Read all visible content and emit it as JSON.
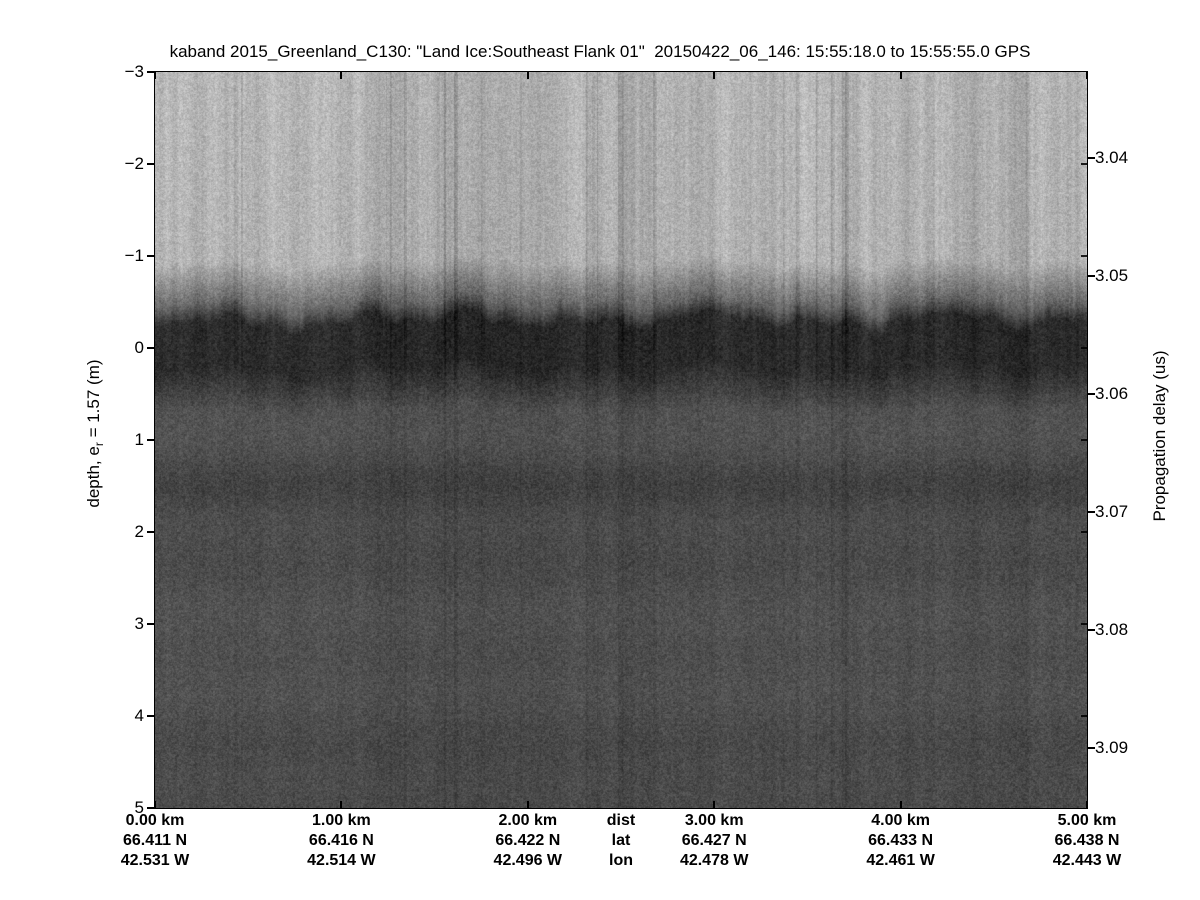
{
  "title": "kaband 2015_Greenland_C130: \"Land Ice:Southeast Flank 01\"  20150422_06_146: 15:55:18.0 to 15:55:55.0 GPS",
  "chart_data": {
    "type": "heatmap",
    "subtype": "radar-echogram",
    "title": "kaband 2015_Greenland_C130: \"Land Ice:Southeast Flank 01\"  20150422_06_146: 15:55:18.0 to 15:55:55.0 GPS",
    "grid": "off",
    "colormap": "grayscale",
    "left_axis": {
      "label": "depth, e_r = 1.57 (m)",
      "label_parts": {
        "prefix": "depth, e",
        "sub": "r",
        "suffix": " = 1.57 (m)"
      },
      "unit": "m",
      "ticks": [
        -3,
        -2,
        -1,
        0,
        1,
        2,
        3,
        4,
        5
      ],
      "range": [
        -3,
        5
      ]
    },
    "right_axis": {
      "label": "Propagation delay (us)",
      "unit": "us",
      "ticks": [
        3.04,
        3.05,
        3.06,
        3.07,
        3.08,
        3.09
      ]
    },
    "x_axis": {
      "row_headers": [
        "dist",
        "lat",
        "lon"
      ],
      "row_header_position_km": 2.5,
      "range_km": [
        0,
        5
      ],
      "columns": [
        {
          "km": 0,
          "dist": "0.00 km",
          "lat": "66.411 N",
          "lon": "42.531 W"
        },
        {
          "km": 1,
          "dist": "1.00 km",
          "lat": "66.416 N",
          "lon": "42.514 W"
        },
        {
          "km": 2,
          "dist": "2.00 km",
          "lat": "66.422 N",
          "lon": "42.496 W"
        },
        {
          "km": 3,
          "dist": "3.00 km",
          "lat": "66.427 N",
          "lon": "42.478 W"
        },
        {
          "km": 4,
          "dist": "4.00 km",
          "lat": "66.433 N",
          "lon": "42.461 W"
        },
        {
          "km": 5,
          "dist": "5.00 km",
          "lat": "66.438 N",
          "lon": "42.443 W"
        }
      ]
    },
    "image_regions": [
      {
        "name": "above-surface noise (air)",
        "depth_range_m": [
          -3,
          -0.7
        ],
        "gray_mean": 178,
        "texture": "light speckle with faint dark vertical streaks"
      },
      {
        "name": "transition to surface",
        "depth_range_m": [
          -0.7,
          -0.45
        ],
        "gray_mean": 110,
        "texture": "gradual darkening, ragged edge"
      },
      {
        "name": "surface return band",
        "depth_range_m": [
          -0.45,
          0.25
        ],
        "gray_mean": 42,
        "texture": "dark ragged horizontal band centered at depth 0"
      },
      {
        "name": "subsurface ice",
        "depth_range_m": [
          0.25,
          5
        ],
        "gray_mean": 78,
        "texture": "uniform mid-dark speckle with faint horizontal banding"
      },
      {
        "name": "internal layer dip",
        "depth_m": 1.5,
        "gray_mean": 68,
        "texture": "subtle darker horizontal band"
      }
    ]
  }
}
